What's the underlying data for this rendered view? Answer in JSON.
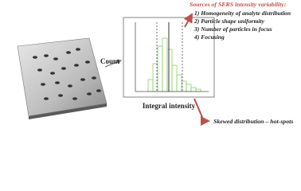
{
  "sources": {
    "title": "Sources of SERS intensity variability:",
    "items": [
      "1)  Homogeneity of analyte distribution",
      "2)  Particle shape uniformity",
      "3)  Number of particles in focus",
      "4)  Focusing"
    ]
  },
  "histogram": {
    "y_label": "Count",
    "x_label": "Integral intensity"
  },
  "note": "Skewed distribution – hot-spots"
}
